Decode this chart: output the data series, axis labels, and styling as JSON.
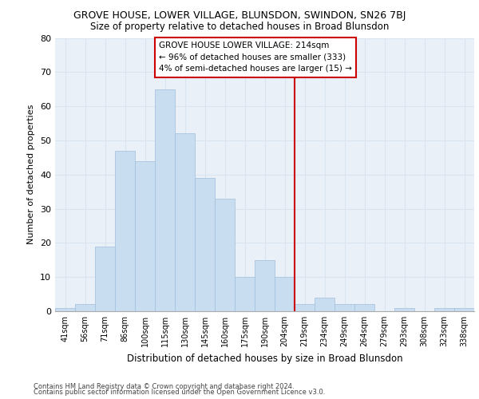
{
  "title": "GROVE HOUSE, LOWER VILLAGE, BLUNSDON, SWINDON, SN26 7BJ",
  "subtitle": "Size of property relative to detached houses in Broad Blunsdon",
  "xlabel": "Distribution of detached houses by size in Broad Blunsdon",
  "ylabel": "Number of detached properties",
  "bar_color": "#c8ddf0",
  "bar_edge_color": "#a0bfdc",
  "categories": [
    "41sqm",
    "56sqm",
    "71sqm",
    "86sqm",
    "100sqm",
    "115sqm",
    "130sqm",
    "145sqm",
    "160sqm",
    "175sqm",
    "190sqm",
    "204sqm",
    "219sqm",
    "234sqm",
    "249sqm",
    "264sqm",
    "279sqm",
    "293sqm",
    "308sqm",
    "323sqm",
    "338sqm"
  ],
  "values": [
    1,
    2,
    19,
    47,
    44,
    65,
    52,
    39,
    33,
    10,
    15,
    10,
    2,
    4,
    2,
    2,
    0,
    1,
    0,
    1,
    1
  ],
  "vline_color": "#cc0000",
  "vline_x_idx": 12.0,
  "annotation_text": "GROVE HOUSE LOWER VILLAGE: 214sqm\n← 96% of detached houses are smaller (333)\n4% of semi-detached houses are larger (15) →",
  "ylim": [
    0,
    80
  ],
  "yticks": [
    0,
    10,
    20,
    30,
    40,
    50,
    60,
    70,
    80
  ],
  "grid_color": "#d8e4f0",
  "plot_bg_color": "#eaf0f8",
  "fig_bg_color": "#ffffff",
  "footer1": "Contains HM Land Registry data © Crown copyright and database right 2024.",
  "footer2": "Contains public sector information licensed under the Open Government Licence v3.0."
}
